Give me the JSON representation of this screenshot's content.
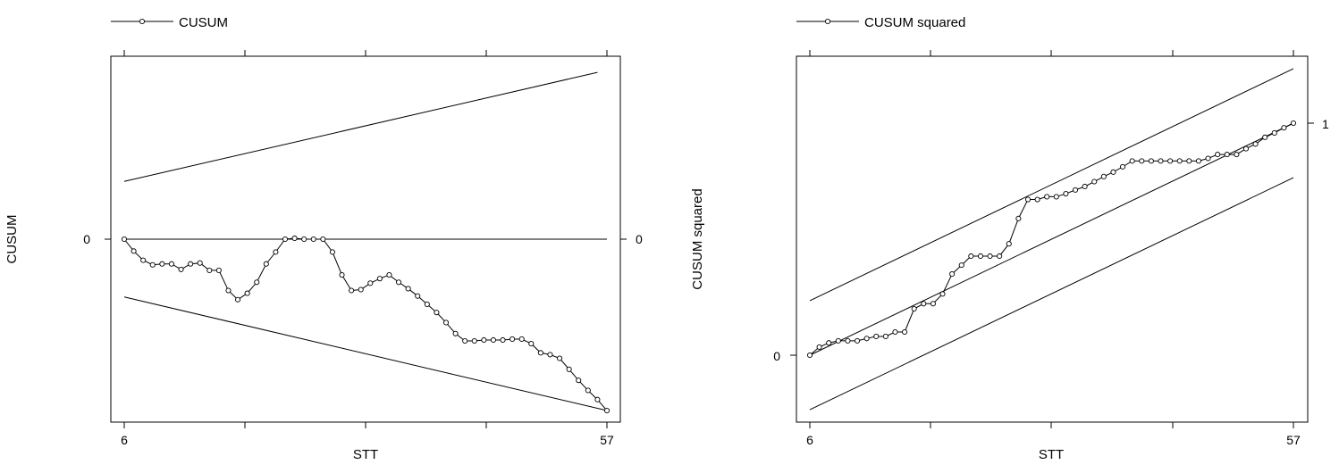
{
  "chart_data": [
    {
      "type": "line",
      "legend": "CUSUM",
      "xlabel": "STT",
      "ylabel": "CUSUM",
      "x_ticks_labeled": [
        "6",
        "57"
      ],
      "y_ticks_left": [
        "0"
      ],
      "y_ticks_right": [
        "0"
      ],
      "xlim": [
        6,
        57
      ],
      "ylim": [
        -20,
        20
      ],
      "zero_line": 0,
      "bounds": {
        "upper": [
          [
            6,
            6.3
          ],
          [
            56,
            18.2
          ]
        ],
        "lower": [
          [
            6,
            -6.3
          ],
          [
            57,
            -18.7
          ]
        ]
      },
      "series": [
        {
          "x": [
            6,
            7,
            8,
            9,
            10,
            11,
            12,
            13,
            14,
            15,
            16,
            17,
            18,
            19,
            20,
            21,
            22,
            23,
            24,
            25,
            26,
            27,
            28,
            29,
            30,
            31,
            32,
            33,
            34,
            35,
            36,
            37,
            38,
            39,
            40,
            41,
            42,
            43,
            44,
            45,
            46,
            47,
            48,
            49,
            50,
            51,
            52,
            53,
            54,
            55,
            56,
            57
          ],
          "y": [
            0,
            -1.3,
            -2.3,
            -2.8,
            -2.7,
            -2.7,
            -3.3,
            -2.7,
            -2.6,
            -3.4,
            -3.4,
            -5.6,
            -6.6,
            -5.9,
            -4.7,
            -2.7,
            -1.4,
            0,
            0.1,
            0,
            0,
            0,
            -1.4,
            -3.9,
            -5.6,
            -5.5,
            -4.8,
            -4.3,
            -3.9,
            -4.7,
            -5.4,
            -6.2,
            -7.1,
            -8.0,
            -9.1,
            -10.3,
            -11.1,
            -11.1,
            -11.0,
            -11.0,
            -11.0,
            -10.9,
            -10.9,
            -11.4,
            -12.4,
            -12.6,
            -13.0,
            -14.2,
            -15.4,
            -16.5,
            -17.5,
            -18.7
          ]
        }
      ]
    },
    {
      "type": "line",
      "legend": "CUSUM squared",
      "xlabel": "STT",
      "ylabel": "CUSUM squared",
      "x_ticks_labeled": [
        "6",
        "57"
      ],
      "y_ticks_right": [
        "1"
      ],
      "y_ticks_left": [
        "0"
      ],
      "xlim": [
        6,
        57
      ],
      "ylim": [
        -0.29,
        1.28
      ],
      "bounds": {
        "upper": [
          [
            6,
            0.235
          ],
          [
            57,
            1.235
          ]
        ],
        "middle": [
          [
            6,
            0
          ],
          [
            57,
            1
          ]
        ],
        "lower": [
          [
            6,
            -0.235
          ],
          [
            57,
            0.765
          ]
        ]
      },
      "series": [
        {
          "x": [
            6,
            7,
            8,
            9,
            10,
            11,
            12,
            13,
            14,
            15,
            16,
            17,
            18,
            19,
            20,
            21,
            22,
            23,
            24,
            25,
            26,
            27,
            28,
            29,
            30,
            31,
            32,
            33,
            34,
            35,
            36,
            37,
            38,
            39,
            40,
            41,
            42,
            43,
            44,
            45,
            46,
            47,
            48,
            49,
            50,
            51,
            52,
            53,
            54,
            55,
            56,
            57
          ],
          "y": [
            0,
            0.035,
            0.053,
            0.062,
            0.062,
            0.062,
            0.072,
            0.081,
            0.081,
            0.1,
            0.1,
            0.2,
            0.222,
            0.222,
            0.264,
            0.35,
            0.388,
            0.427,
            0.427,
            0.427,
            0.427,
            0.48,
            0.589,
            0.671,
            0.671,
            0.683,
            0.683,
            0.696,
            0.712,
            0.727,
            0.748,
            0.77,
            0.789,
            0.812,
            0.837,
            0.837,
            0.837,
            0.837,
            0.837,
            0.837,
            0.837,
            0.837,
            0.848,
            0.865,
            0.865,
            0.865,
            0.89,
            0.91,
            0.939,
            0.958,
            0.98,
            1.0
          ]
        }
      ]
    }
  ]
}
